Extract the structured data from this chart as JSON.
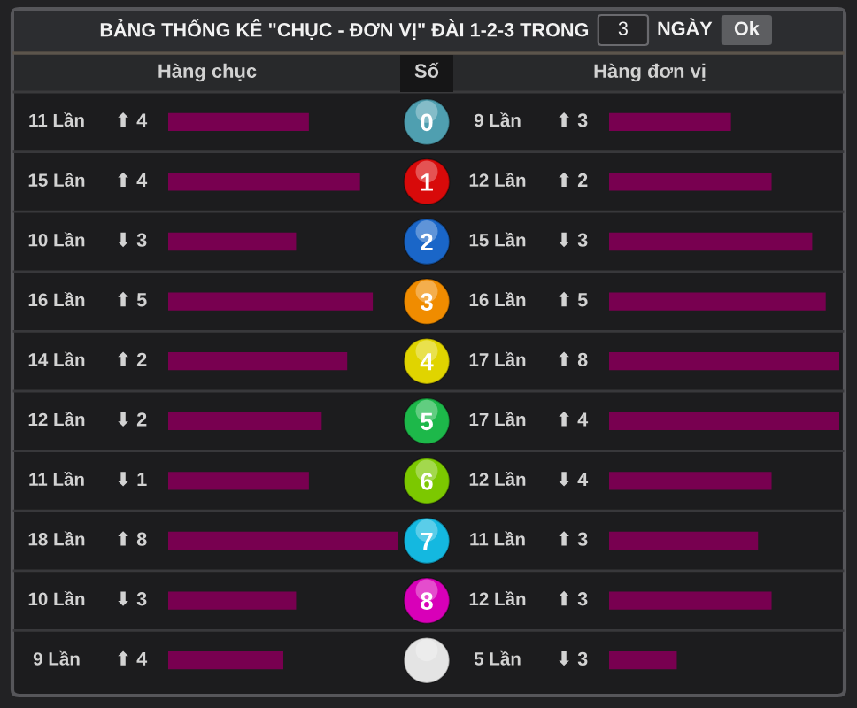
{
  "chart_data": [
    {
      "type": "bar",
      "orientation": "horizontal",
      "title": "Hàng chục",
      "ylabel": "Số",
      "categories": [
        "0",
        "1",
        "2",
        "3",
        "4",
        "5",
        "6",
        "7",
        "8",
        null
      ],
      "tick_labels": "y",
      "series": [
        {
          "type": "bar",
          "color": "#780050",
          "values": [
            11,
            15,
            10,
            16,
            14,
            12,
            11,
            18,
            10,
            9
          ],
          "value_labels": [
            "11 Lần",
            "15 Lần",
            "10 Lần",
            "16 Lần",
            "14 Lần",
            "12 Lần",
            "11 Lần",
            "18 Lần",
            "10 Lần",
            "9 Lần"
          ]
        }
      ],
      "annotations": [
        "BẢNG THỐNG KÊ \"CHỤC - ĐƠN VỊ\" ĐÀI 1-2-3 TRONG",
        "3",
        "NGÀY",
        "Ok",
        "⬆ 4",
        "⬆ 4",
        "⬇ 3",
        "⬆ 5",
        "⬆ 2",
        "⬇ 2",
        "⬇ 1",
        "⬆ 8",
        "⬇ 3",
        "⬆ 4"
      ]
    },
    {
      "type": "bar",
      "orientation": "horizontal",
      "title": "Hàng đơn vị",
      "categories": [
        "0",
        "1",
        "2",
        "3",
        "4",
        "5",
        "6",
        "7",
        "8",
        null
      ],
      "tick_labels": false,
      "series": [
        {
          "type": "bar",
          "color": "#780050",
          "values": [
            9,
            12,
            15,
            16,
            17,
            17,
            12,
            11,
            12,
            5
          ],
          "value_labels": [
            "9 Lần",
            "12 Lần",
            "15 Lần",
            "16 Lần",
            "17 Lần",
            "17 Lần",
            "12 Lần",
            "11 Lần",
            "12 Lần",
            "5 Lần"
          ]
        }
      ],
      "annotations": [
        "⬆ 3",
        "⬆ 2",
        "⬇ 3",
        "⬆ 5",
        "⬆ 8",
        "⬆ 4",
        "⬇ 4",
        "⬆ 3",
        "⬆ 3",
        "⬇ 3"
      ]
    }
  ]
}
